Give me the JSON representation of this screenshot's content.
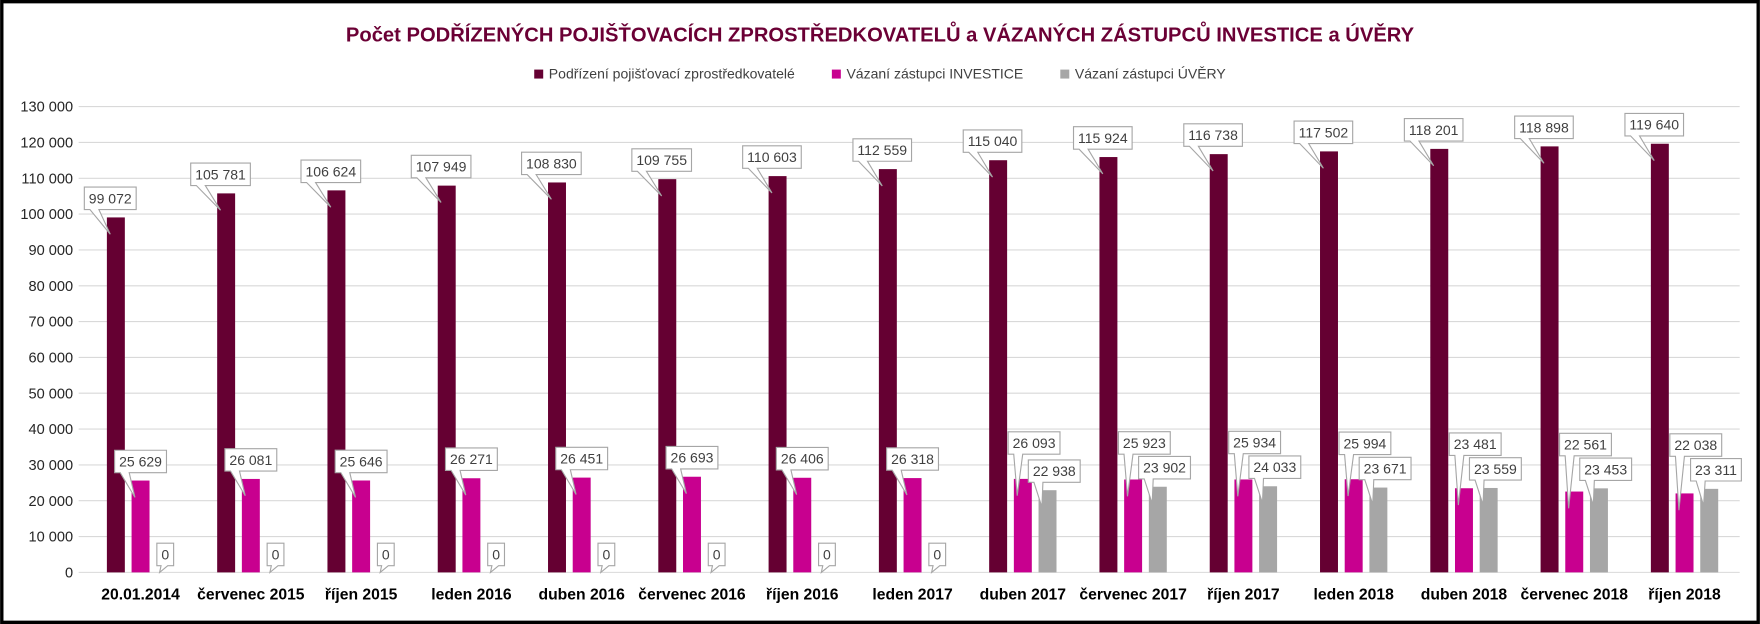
{
  "chart_data": {
    "type": "bar",
    "title": "Počet PODŘÍZENÝCH POJIŠŤOVACÍCH ZPROSTŘEDKOVATELŮ a VÁZANÝCH ZÁSTUPCŮ INVESTICE a ÚVĚRY",
    "title_color": "#6B0035",
    "categories": [
      "20.01.2014",
      "červenec 2015",
      "říjen 2015",
      "leden 2016",
      "duben 2016",
      "červenec 2016",
      "říjen 2016",
      "leden 2017",
      "duben 2017",
      "červenec 2017",
      "říjen 2017",
      "leden 2018",
      "duben 2018",
      "červenec 2018",
      "říjen 2018"
    ],
    "series": [
      {
        "name": "Podřízení pojišťovací zprostředkovatelé",
        "color": "#650032",
        "values": [
          99072,
          105781,
          106624,
          107949,
          108830,
          109755,
          110603,
          112559,
          115040,
          115924,
          116738,
          117502,
          118201,
          118898,
          119640
        ]
      },
      {
        "name": "Vázaní zástupci INVESTICE",
        "color": "#C8008F",
        "values": [
          25629,
          26081,
          25646,
          26271,
          26451,
          26693,
          26406,
          26318,
          26093,
          25923,
          25934,
          25994,
          23481,
          22561,
          22038
        ]
      },
      {
        "name": "Vázaní zástupci ÚVĚRY",
        "color": "#A6A6A6",
        "values": [
          0,
          0,
          0,
          0,
          0,
          0,
          0,
          0,
          22938,
          23902,
          24033,
          23671,
          23559,
          23453,
          23311
        ]
      }
    ],
    "ylim": [
      0,
      130000
    ],
    "yticks": [
      0,
      10000,
      20000,
      30000,
      40000,
      50000,
      60000,
      70000,
      80000,
      90000,
      100000,
      110000,
      120000,
      130000
    ],
    "grid": true,
    "legend": "top-center",
    "data_labels": true
  }
}
